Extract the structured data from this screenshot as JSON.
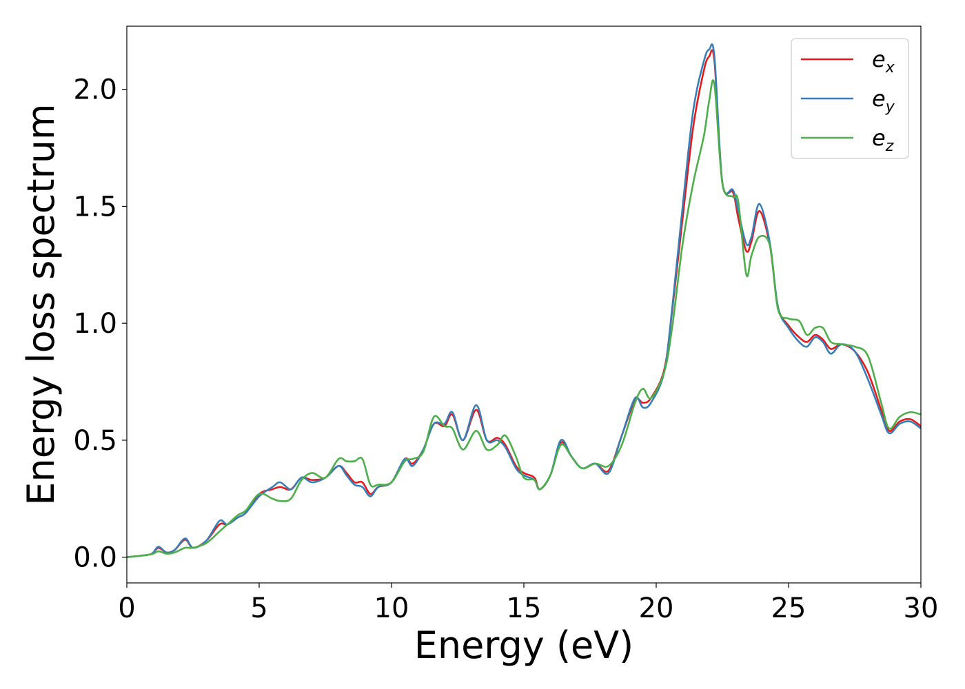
{
  "chart_data": {
    "type": "line",
    "xlabel": "Energy (eV)",
    "ylabel": "Energy loss spectrum",
    "xlim": [
      0,
      30
    ],
    "ylim": [
      -0.11,
      2.27
    ],
    "xticks": [
      0,
      5,
      10,
      15,
      20,
      25,
      30
    ],
    "yticks": [
      0.0,
      0.5,
      1.0,
      1.5,
      2.0
    ],
    "xtick_labels": [
      "0",
      "5",
      "10",
      "15",
      "20",
      "25",
      "30"
    ],
    "ytick_labels": [
      "0.0",
      "0.5",
      "1.0",
      "1.5",
      "2.0"
    ],
    "grid": false,
    "legend_position": "top-right",
    "series": [
      {
        "name": "x",
        "color": "#e41a1c",
        "x": [
          0,
          0.8,
          1.0,
          1.2,
          1.5,
          1.8,
          2.2,
          2.5,
          3.0,
          3.5,
          3.8,
          4.2,
          4.5,
          5.0,
          5.5,
          5.8,
          6.2,
          6.6,
          7.0,
          7.5,
          8.0,
          8.3,
          8.6,
          8.9,
          9.2,
          9.5,
          10.0,
          10.5,
          10.8,
          11.2,
          11.6,
          12.0,
          12.3,
          12.7,
          13.2,
          13.6,
          14.0,
          14.3,
          14.7,
          15.0,
          15.4,
          15.6,
          16.0,
          16.4,
          16.8,
          17.2,
          17.7,
          18.2,
          18.7,
          19.2,
          19.5,
          19.8,
          20.3,
          20.6,
          21.0,
          21.4,
          21.8,
          22.0,
          22.2,
          22.5,
          22.9,
          23.1,
          23.4,
          23.6,
          23.9,
          24.3,
          24.6,
          25.0,
          25.4,
          25.7,
          26.0,
          26.3,
          26.6,
          27.0,
          27.5,
          28.0,
          28.5,
          28.8,
          29.2,
          29.6,
          30.0
        ],
        "values": [
          0,
          0.01,
          0.02,
          0.04,
          0.02,
          0.03,
          0.075,
          0.04,
          0.07,
          0.14,
          0.14,
          0.17,
          0.19,
          0.27,
          0.29,
          0.3,
          0.29,
          0.34,
          0.33,
          0.34,
          0.39,
          0.36,
          0.32,
          0.32,
          0.27,
          0.3,
          0.32,
          0.42,
          0.4,
          0.46,
          0.57,
          0.56,
          0.61,
          0.5,
          0.63,
          0.5,
          0.51,
          0.48,
          0.39,
          0.36,
          0.34,
          0.29,
          0.35,
          0.49,
          0.43,
          0.38,
          0.4,
          0.37,
          0.52,
          0.67,
          0.66,
          0.68,
          0.8,
          1.05,
          1.45,
          1.84,
          2.08,
          2.14,
          2.12,
          1.6,
          1.56,
          1.45,
          1.31,
          1.35,
          1.48,
          1.33,
          1.07,
          0.99,
          0.94,
          0.92,
          0.95,
          0.93,
          0.89,
          0.91,
          0.88,
          0.79,
          0.63,
          0.54,
          0.58,
          0.59,
          0.56
        ]
      },
      {
        "name": "y",
        "color": "#377eb8",
        "x": [
          0,
          0.8,
          1.0,
          1.2,
          1.5,
          1.8,
          2.2,
          2.5,
          3.0,
          3.5,
          3.8,
          4.2,
          4.5,
          5.0,
          5.5,
          5.8,
          6.2,
          6.6,
          7.0,
          7.5,
          8.0,
          8.3,
          8.6,
          8.9,
          9.2,
          9.5,
          10.0,
          10.5,
          10.8,
          11.2,
          11.6,
          12.0,
          12.3,
          12.7,
          13.2,
          13.6,
          14.0,
          14.3,
          14.7,
          15.0,
          15.4,
          15.6,
          16.0,
          16.4,
          16.8,
          17.2,
          17.7,
          18.2,
          18.7,
          19.2,
          19.5,
          19.8,
          20.3,
          20.6,
          21.0,
          21.4,
          21.8,
          22.0,
          22.2,
          22.5,
          22.9,
          23.1,
          23.4,
          23.6,
          23.9,
          24.3,
          24.6,
          25.0,
          25.4,
          25.7,
          26.0,
          26.3,
          26.6,
          27.0,
          27.5,
          28.0,
          28.5,
          28.8,
          29.2,
          29.6,
          30.0
        ],
        "values": [
          0,
          0.01,
          0.02,
          0.045,
          0.02,
          0.03,
          0.08,
          0.04,
          0.07,
          0.155,
          0.14,
          0.17,
          0.19,
          0.26,
          0.3,
          0.32,
          0.29,
          0.34,
          0.32,
          0.34,
          0.39,
          0.35,
          0.31,
          0.3,
          0.26,
          0.3,
          0.32,
          0.42,
          0.39,
          0.46,
          0.57,
          0.57,
          0.62,
          0.5,
          0.65,
          0.5,
          0.5,
          0.47,
          0.38,
          0.35,
          0.33,
          0.29,
          0.35,
          0.5,
          0.43,
          0.38,
          0.4,
          0.36,
          0.52,
          0.68,
          0.64,
          0.66,
          0.79,
          1.06,
          1.5,
          1.91,
          2.12,
          2.17,
          2.14,
          1.6,
          1.57,
          1.48,
          1.34,
          1.37,
          1.51,
          1.34,
          1.07,
          0.98,
          0.92,
          0.9,
          0.94,
          0.92,
          0.87,
          0.91,
          0.88,
          0.76,
          0.61,
          0.53,
          0.57,
          0.58,
          0.55
        ]
      },
      {
        "name": "z",
        "color": "#4daf4a",
        "x": [
          0,
          0.8,
          1.0,
          1.2,
          1.5,
          1.8,
          2.2,
          2.5,
          3.0,
          3.5,
          3.8,
          4.2,
          4.5,
          5.0,
          5.5,
          5.8,
          6.2,
          6.6,
          7.0,
          7.5,
          8.0,
          8.3,
          8.6,
          8.9,
          9.2,
          9.5,
          10.0,
          10.5,
          10.8,
          11.2,
          11.6,
          12.0,
          12.3,
          12.7,
          13.2,
          13.6,
          14.0,
          14.3,
          14.7,
          15.0,
          15.4,
          15.6,
          16.0,
          16.4,
          16.8,
          17.2,
          17.7,
          18.2,
          18.7,
          19.2,
          19.5,
          19.8,
          20.3,
          20.6,
          21.0,
          21.4,
          21.8,
          22.0,
          22.2,
          22.5,
          22.9,
          23.1,
          23.4,
          23.6,
          23.9,
          24.3,
          24.6,
          25.0,
          25.4,
          25.7,
          26.0,
          26.3,
          26.6,
          27.0,
          27.5,
          28.0,
          28.5,
          28.8,
          29.2,
          29.6,
          30.0
        ],
        "values": [
          0,
          0.01,
          0.015,
          0.025,
          0.015,
          0.02,
          0.04,
          0.04,
          0.06,
          0.11,
          0.14,
          0.18,
          0.2,
          0.27,
          0.25,
          0.24,
          0.25,
          0.33,
          0.36,
          0.34,
          0.42,
          0.41,
          0.41,
          0.42,
          0.31,
          0.31,
          0.32,
          0.41,
          0.42,
          0.45,
          0.6,
          0.56,
          0.55,
          0.46,
          0.54,
          0.46,
          0.48,
          0.52,
          0.43,
          0.34,
          0.33,
          0.29,
          0.35,
          0.48,
          0.43,
          0.38,
          0.4,
          0.39,
          0.48,
          0.66,
          0.72,
          0.68,
          0.79,
          0.98,
          1.34,
          1.6,
          1.8,
          1.95,
          2.02,
          1.6,
          1.54,
          1.52,
          1.21,
          1.29,
          1.37,
          1.33,
          1.06,
          1.02,
          1.01,
          0.95,
          0.98,
          0.98,
          0.92,
          0.91,
          0.9,
          0.86,
          0.66,
          0.55,
          0.6,
          0.62,
          0.61
        ]
      }
    ]
  }
}
